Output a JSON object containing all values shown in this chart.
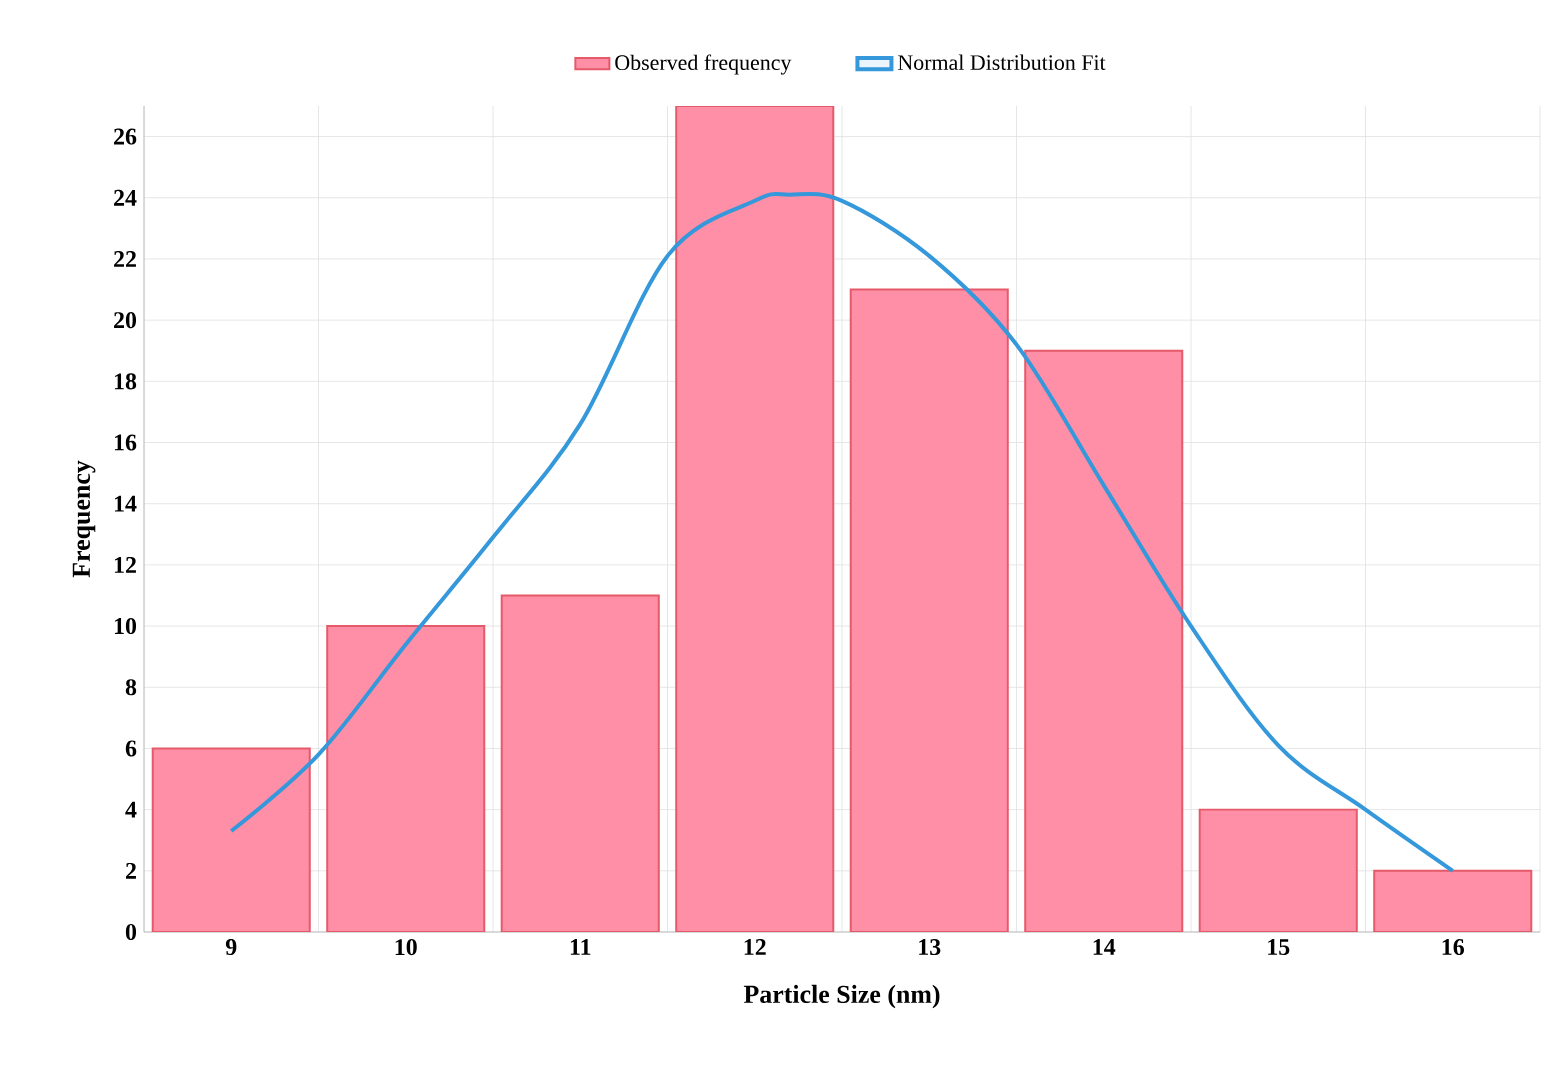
{
  "chart_data": {
    "type": "bar",
    "xlabel": "Particle Size (nm)",
    "ylabel": "Frequency",
    "x": [
      9,
      10,
      11,
      12,
      13,
      14,
      15,
      16
    ],
    "xlim": [
      8.5,
      16.5
    ],
    "xticks": [
      9,
      10,
      11,
      12,
      13,
      14,
      15,
      16
    ],
    "ylim": [
      0,
      27
    ],
    "yticks": [
      0,
      2,
      4,
      6,
      8,
      10,
      12,
      14,
      16,
      18,
      20,
      22,
      24,
      26
    ],
    "grid": true,
    "legend": "top",
    "series": [
      {
        "name": "Observed frequency",
        "color": "#ff8fa6",
        "values": [
          6,
          10,
          11,
          27,
          21,
          19,
          4,
          2
        ]
      },
      {
        "name": "Normal Distribution Fit",
        "type": "line",
        "color": "#3498db",
        "x": [
          9,
          9.5,
          10,
          10.5,
          11,
          11.5,
          12,
          12.2,
          12.5,
          13,
          13.5,
          14,
          14.5,
          15,
          15.5,
          16
        ],
        "values": [
          3.3,
          5.8,
          9.4,
          12.9,
          16.6,
          22.1,
          23.9,
          24.1,
          23.9,
          22.1,
          19.2,
          14.6,
          10.0,
          6.1,
          4.0,
          2.0
        ]
      }
    ]
  }
}
